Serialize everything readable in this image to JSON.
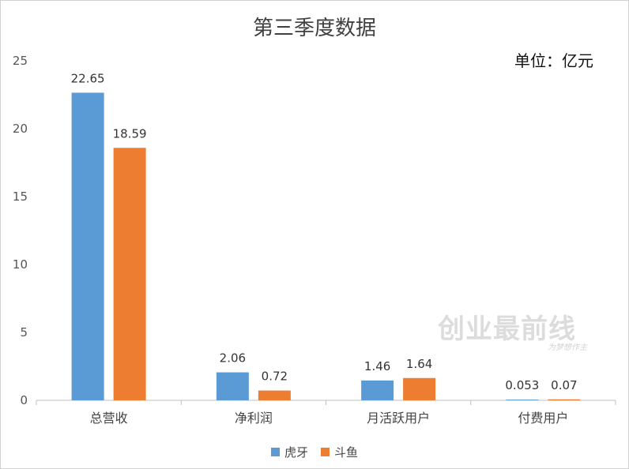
{
  "chart_data": {
    "type": "bar",
    "title": "第三季度数据",
    "unit_label": "单位：亿元",
    "categories": [
      "总营收",
      "净利润",
      "月活跃用户",
      "付费用户"
    ],
    "series": [
      {
        "name": "虎牙",
        "color": "#5b9bd5",
        "values": [
          22.65,
          2.06,
          1.46,
          0.053
        ]
      },
      {
        "name": "斗鱼",
        "color": "#ed7d31",
        "values": [
          18.59,
          0.72,
          1.64,
          0.07
        ]
      }
    ],
    "value_labels": [
      [
        "22.65",
        "2.06",
        "1.46",
        "0.053"
      ],
      [
        "18.59",
        "0.72",
        "1.64",
        "0.07"
      ]
    ],
    "ylim": [
      0,
      25
    ],
    "yticks": [
      0,
      5,
      10,
      15,
      20,
      25
    ],
    "legend_position": "bottom",
    "grid": false
  },
  "watermark": {
    "text": "创业最前线",
    "sub": "为梦想作主"
  }
}
